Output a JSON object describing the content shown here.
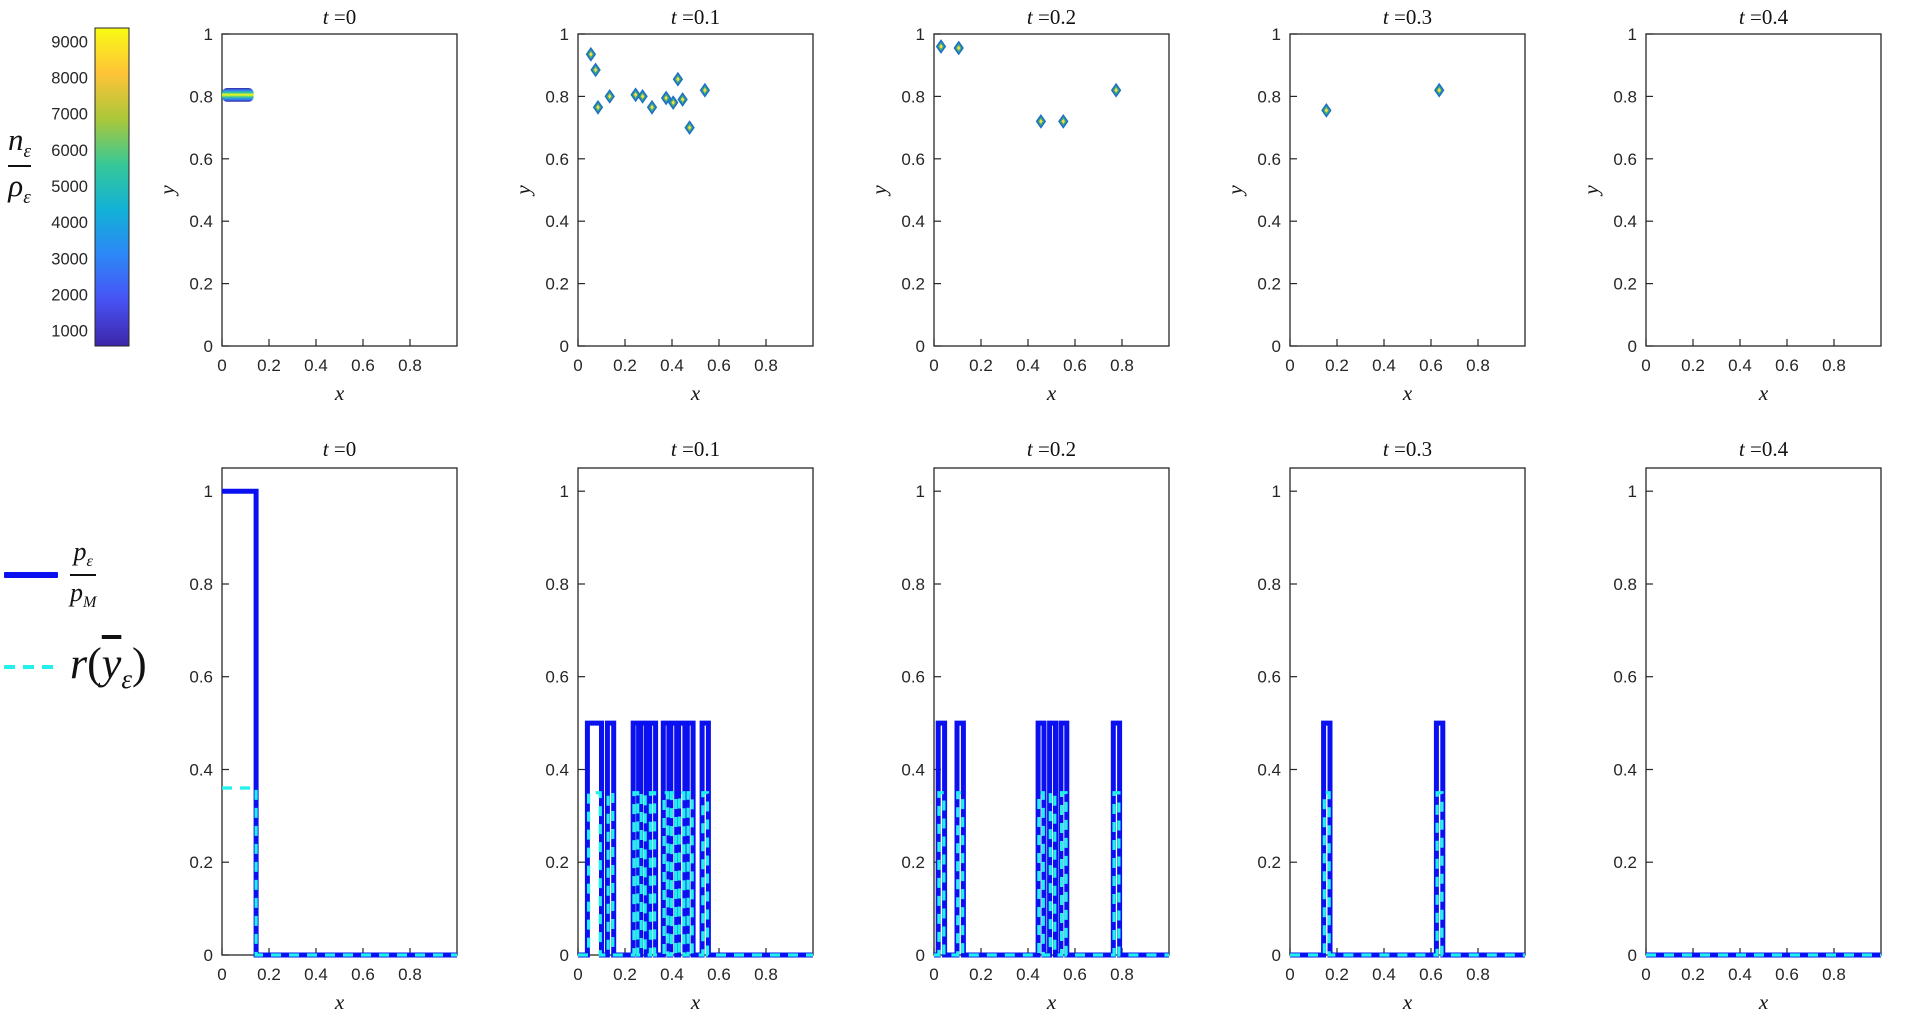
{
  "figure": {
    "background": "#ffffff"
  },
  "colorbar": {
    "label": {
      "num_main": "n",
      "num_sub": "ε",
      "den_main": "ρ",
      "den_sub": "ε"
    },
    "tick_values": [
      1000,
      2000,
      3000,
      4000,
      5000,
      6000,
      7000,
      8000,
      9000
    ],
    "value_range": [
      600,
      9400
    ],
    "colormap": [
      "#3D26A8",
      "#4852F4",
      "#2D87F7",
      "#12B1D6",
      "#37C897",
      "#ABC739",
      "#FEC338",
      "#F9FB15"
    ]
  },
  "legend": {
    "items": [
      {
        "name": "pressure-ratio",
        "sample": "solid",
        "color": "#0a10f0",
        "num_main": "p",
        "num_sub": "ε",
        "den_main": "p",
        "den_sub": "M"
      },
      {
        "name": "r-of-ybar",
        "sample": "dashed",
        "color": "#22f0ec",
        "var": "r",
        "open": "(",
        "ybar": "y",
        "sub": "ε",
        "close": ")"
      }
    ]
  },
  "chart_data": [
    {
      "row": "top",
      "type": "scatter",
      "quantity": "n_ε/ρ_ε",
      "xlabel": "x",
      "ylabel": "y",
      "xlim": [
        0,
        1
      ],
      "ylim": [
        0,
        1
      ],
      "xticks": [
        0,
        0.2,
        0.4,
        0.6,
        0.8
      ],
      "yticks": [
        0,
        0.2,
        0.4,
        0.6,
        0.8,
        1
      ],
      "marker_style": {
        "edge": "#1e6fc8",
        "fill": "#3fae73",
        "center": "#ffd94a"
      },
      "band_colors": [
        "#3D26A8",
        "#2D87F7",
        "#37C897",
        "#F9FB15"
      ],
      "subplots": [
        {
          "title": {
            "var": "t",
            "rest": " =0"
          },
          "band": {
            "x0": 0,
            "x1": 0.135,
            "y": 0.805,
            "half": 0.022
          },
          "markers": []
        },
        {
          "title": {
            "var": "t",
            "rest": " =0.1"
          },
          "markers": [
            [
              0.055,
              0.935
            ],
            [
              0.075,
              0.885
            ],
            [
              0.085,
              0.765
            ],
            [
              0.135,
              0.8
            ],
            [
              0.245,
              0.805
            ],
            [
              0.275,
              0.8
            ],
            [
              0.315,
              0.765
            ],
            [
              0.375,
              0.795
            ],
            [
              0.405,
              0.78
            ],
            [
              0.425,
              0.855
            ],
            [
              0.445,
              0.79
            ],
            [
              0.475,
              0.7
            ],
            [
              0.54,
              0.82
            ]
          ]
        },
        {
          "title": {
            "var": "t",
            "rest": " =0.2"
          },
          "markers": [
            [
              0.03,
              0.96
            ],
            [
              0.105,
              0.955
            ],
            [
              0.455,
              0.72
            ],
            [
              0.55,
              0.72
            ],
            [
              0.775,
              0.82
            ]
          ]
        },
        {
          "title": {
            "var": "t",
            "rest": " =0.3"
          },
          "markers": [
            [
              0.155,
              0.755
            ],
            [
              0.635,
              0.82
            ]
          ]
        },
        {
          "title": {
            "var": "t",
            "rest": " =0.4"
          },
          "markers": []
        }
      ]
    },
    {
      "row": "bottom",
      "type": "line",
      "xlabel": "x",
      "xlim": [
        0,
        1
      ],
      "ylim": [
        0,
        1.05
      ],
      "xticks": [
        0,
        0.2,
        0.4,
        0.6,
        0.8
      ],
      "yticks": [
        0,
        0.2,
        0.4,
        0.6,
        0.8,
        1
      ],
      "series": [
        {
          "name": "p_ε/p_M",
          "color": "#0a10f0",
          "width": 5,
          "dash": ""
        },
        {
          "name": "r(ȳ_ε)",
          "color": "#22f0ec",
          "width": 3.2,
          "dash": "10 8"
        }
      ],
      "subplots": [
        {
          "title": {
            "var": "t",
            "rest": " =0"
          },
          "blue": [
            [
              0,
              0.145,
              1.0
            ]
          ],
          "cyan": [
            [
              0,
              0.145,
              0.36
            ]
          ]
        },
        {
          "title": {
            "var": "t",
            "rest": " =0.1"
          },
          "blue": [
            [
              0.04,
              0.1,
              0.5
            ],
            [
              0.125,
              0.152,
              0.5
            ],
            [
              0.235,
              0.258,
              0.5
            ],
            [
              0.266,
              0.29,
              0.5
            ],
            [
              0.305,
              0.33,
              0.5
            ],
            [
              0.363,
              0.387,
              0.5
            ],
            [
              0.395,
              0.42,
              0.5
            ],
            [
              0.428,
              0.455,
              0.5
            ],
            [
              0.465,
              0.49,
              0.5
            ],
            [
              0.528,
              0.555,
              0.5
            ]
          ],
          "cyan": [
            [
              0.045,
              0.095,
              0.35
            ],
            [
              0.128,
              0.148,
              0.35
            ],
            [
              0.238,
              0.254,
              0.35
            ],
            [
              0.269,
              0.286,
              0.35
            ],
            [
              0.308,
              0.326,
              0.35
            ],
            [
              0.366,
              0.383,
              0.35
            ],
            [
              0.398,
              0.416,
              0.35
            ],
            [
              0.431,
              0.451,
              0.35
            ],
            [
              0.468,
              0.486,
              0.35
            ],
            [
              0.531,
              0.551,
              0.35
            ]
          ]
        },
        {
          "title": {
            "var": "t",
            "rest": " =0.2"
          },
          "blue": [
            [
              0.018,
              0.045,
              0.5
            ],
            [
              0.098,
              0.125,
              0.5
            ],
            [
              0.443,
              0.468,
              0.5
            ],
            [
              0.492,
              0.517,
              0.5
            ],
            [
              0.54,
              0.565,
              0.5
            ],
            [
              0.763,
              0.79,
              0.5
            ]
          ],
          "cyan": [
            [
              0.021,
              0.042,
              0.35
            ],
            [
              0.101,
              0.122,
              0.35
            ],
            [
              0.446,
              0.465,
              0.35
            ],
            [
              0.495,
              0.514,
              0.35
            ],
            [
              0.543,
              0.562,
              0.35
            ],
            [
              0.766,
              0.787,
              0.35
            ]
          ]
        },
        {
          "title": {
            "var": "t",
            "rest": " =0.3"
          },
          "blue": [
            [
              0.143,
              0.17,
              0.5
            ],
            [
              0.623,
              0.65,
              0.5
            ]
          ],
          "cyan": [
            [
              0.146,
              0.167,
              0.35
            ],
            [
              0.626,
              0.647,
              0.35
            ]
          ]
        },
        {
          "title": {
            "var": "t",
            "rest": " =0.4"
          },
          "blue": [],
          "cyan": []
        }
      ]
    }
  ]
}
